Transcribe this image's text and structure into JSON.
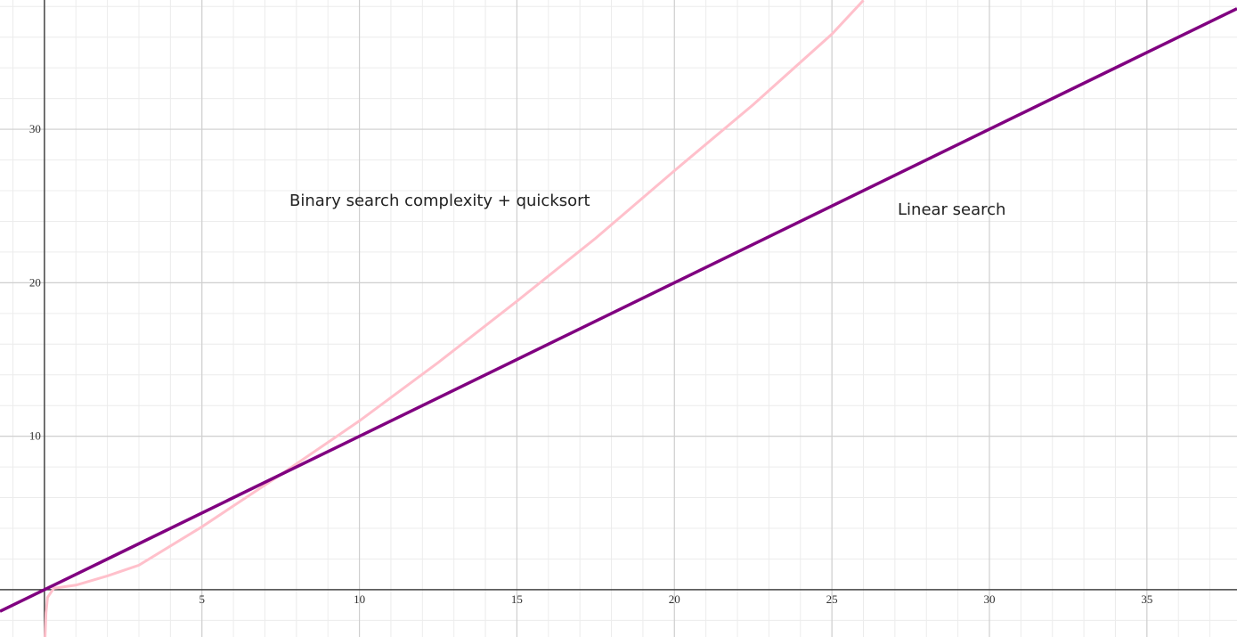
{
  "chart_data": {
    "type": "line",
    "xlim": [
      -1.41,
      37.86
    ],
    "ylim": [
      -3.08,
      38.42
    ],
    "xticks": [
      5,
      10,
      15,
      20,
      25,
      30,
      35
    ],
    "yticks": [
      10,
      20,
      30
    ],
    "grid": true,
    "series": [
      {
        "name": "Binary search complexity + quicksort",
        "color": "#ffc0cb",
        "x": [
          0.02,
          0.05,
          0.1,
          0.3,
          1,
          2,
          3,
          5,
          7.5,
          10,
          12.5,
          15,
          17.5,
          20,
          22.5,
          25,
          26
        ],
        "values": [
          -3.1,
          -1.5,
          -0.5,
          0.1,
          0.3,
          0.9,
          1.6,
          4.1,
          7.5,
          11,
          14.8,
          18.8,
          22.9,
          27.3,
          31.6,
          36.2,
          38.4
        ]
      },
      {
        "name": "Linear search",
        "color": "#800080",
        "x": [
          -1.41,
          37.86
        ],
        "values": [
          -1.41,
          37.86
        ]
      }
    ]
  }
}
